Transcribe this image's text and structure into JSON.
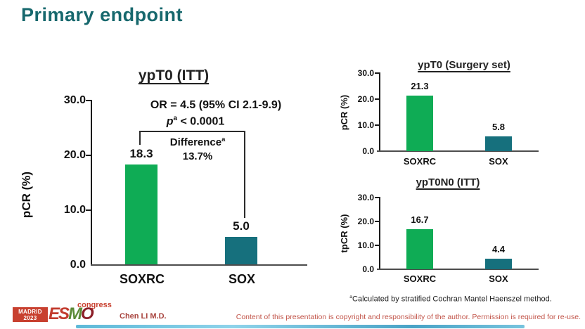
{
  "slide": {
    "title": "Primary endpoint",
    "presenter": "Chen LI M.D.",
    "copyright": "Content of this presentation is copyright and responsibility of the author. Permission is required for re-use.",
    "footnote": {
      "sup": "a",
      "text": "Calculated by stratified Cochran Mantel Haenszel method."
    }
  },
  "logo": {
    "city": "MADRID",
    "year": "2023",
    "esmo_es": "ES",
    "esmo_m": "M",
    "esmo_o": "O",
    "congress": "congress"
  },
  "colors": {
    "title_teal": "#17686D",
    "bar_green": "#0FAC55",
    "bar_teal": "#16707D",
    "accent_red": "#C8402F",
    "axis_gray": "#4D4D4D"
  },
  "chart_data": [
    {
      "type": "bar",
      "title": "ypT0 (ITT)",
      "ylabel": "pCR (%)",
      "categories": [
        "SOXRC",
        "SOX"
      ],
      "values": [
        18.3,
        5.0
      ],
      "value_labels": [
        "18.3",
        "5.0"
      ],
      "yticks": [
        "30.0",
        "20.0",
        "10.0",
        "0.0"
      ],
      "ylim": [
        0,
        30
      ],
      "grid": false,
      "annotations": {
        "or_line": "OR = 4.5 (95% CI 2.1-9.9)",
        "p_prefix": "p",
        "p_sup": "a",
        "p_rest": " < 0.0001",
        "difference_label": "Difference",
        "difference_sup": "a",
        "difference_value": "13.7%"
      }
    },
    {
      "type": "bar",
      "title": "ypT0 (Surgery set)",
      "ylabel": "pCR (%)",
      "categories": [
        "SOXRC",
        "SOX"
      ],
      "values": [
        21.3,
        5.8
      ],
      "value_labels": [
        "21.3",
        "5.8"
      ],
      "yticks": [
        "30.0",
        "20.0",
        "10.0",
        "0.0"
      ],
      "ylim": [
        0,
        30
      ],
      "grid": false
    },
    {
      "type": "bar",
      "title": "ypT0N0 (ITT)",
      "ylabel": "tpCR (%)",
      "categories": [
        "SOXRC",
        "SOX"
      ],
      "values": [
        16.7,
        4.4
      ],
      "value_labels": [
        "16.7",
        "4.4"
      ],
      "yticks": [
        "30.0",
        "20.0",
        "10.0",
        "0.0"
      ],
      "ylim": [
        0,
        30
      ],
      "grid": false
    }
  ]
}
